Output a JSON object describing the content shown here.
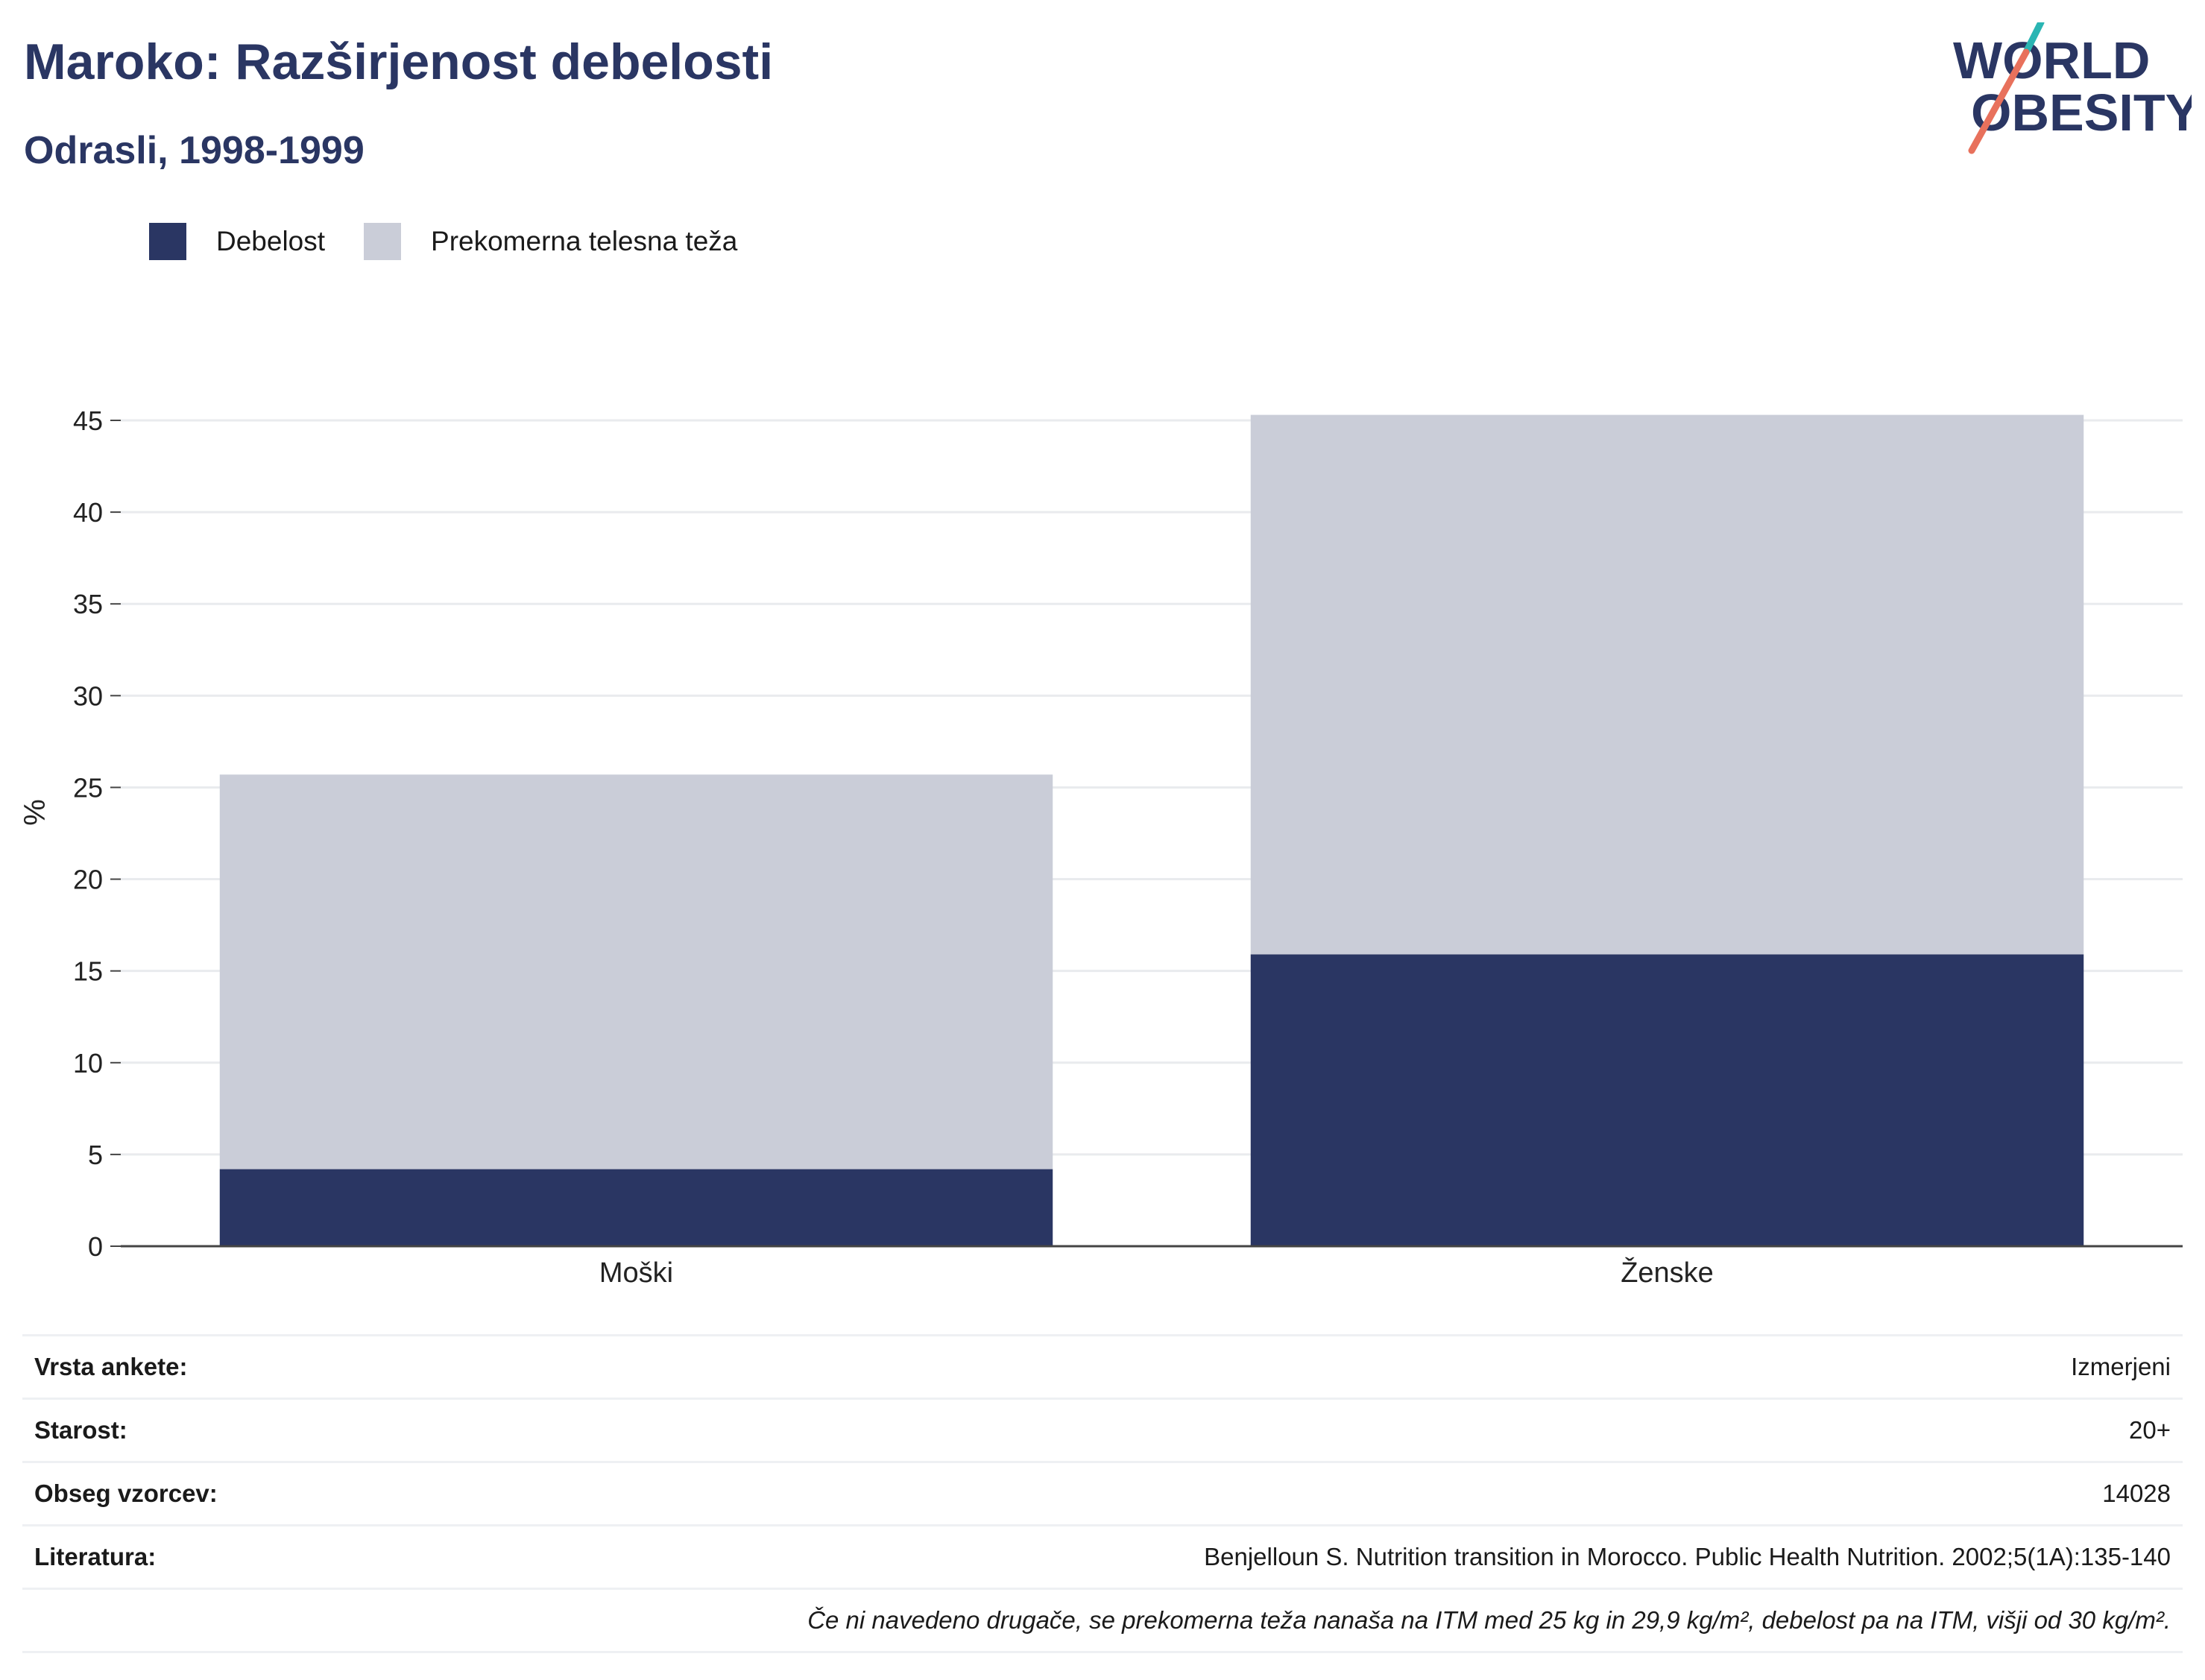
{
  "header": {
    "title": "Maroko: Razširjenost debelosti",
    "subtitle": "Odrasli, 1998-1999"
  },
  "logo": {
    "line1": "WORLD",
    "line2": "OBESITY",
    "accent_colors": [
      "#2ab5b3",
      "#e8715c"
    ]
  },
  "colors": {
    "obesity": "#2a3663",
    "overweight": "#cacdd8",
    "title": "#2a3663",
    "gridline": "#e9ebee",
    "axis": "#444444"
  },
  "legend": [
    {
      "label": "Debelost",
      "color": "#2a3663"
    },
    {
      "label": "Prekomerna telesna teža",
      "color": "#cacdd8"
    }
  ],
  "chart_data": {
    "type": "bar",
    "stacked": true,
    "categories": [
      "Moški",
      "Ženske"
    ],
    "series": [
      {
        "name": "Debelost",
        "values": [
          4.2,
          15.9
        ]
      },
      {
        "name": "Prekomerna telesna teža",
        "values": [
          21.5,
          29.4
        ]
      }
    ],
    "ylabel": "%",
    "xlabel": "",
    "ylim": [
      0,
      45
    ],
    "yticks": [
      0,
      5,
      10,
      15,
      20,
      25,
      30,
      35,
      40,
      45
    ],
    "grid": true,
    "legend_position": "top-left"
  },
  "info": [
    {
      "label": "Vrsta ankete:",
      "value": "Izmerjeni"
    },
    {
      "label": "Starost:",
      "value": "20+"
    },
    {
      "label": "Obseg vzorcev:",
      "value": "14028"
    },
    {
      "label": "Literatura:",
      "value": "Benjelloun S. Nutrition transition in Morocco. Public Health Nutrition. 2002;5(1A):135-140"
    }
  ],
  "footnote": "Če ni navedeno drugače, se prekomerna teža nanaša na ITM med 25 kg in 29,9 kg/m², debelost pa na ITM, višji od 30 kg/m²."
}
